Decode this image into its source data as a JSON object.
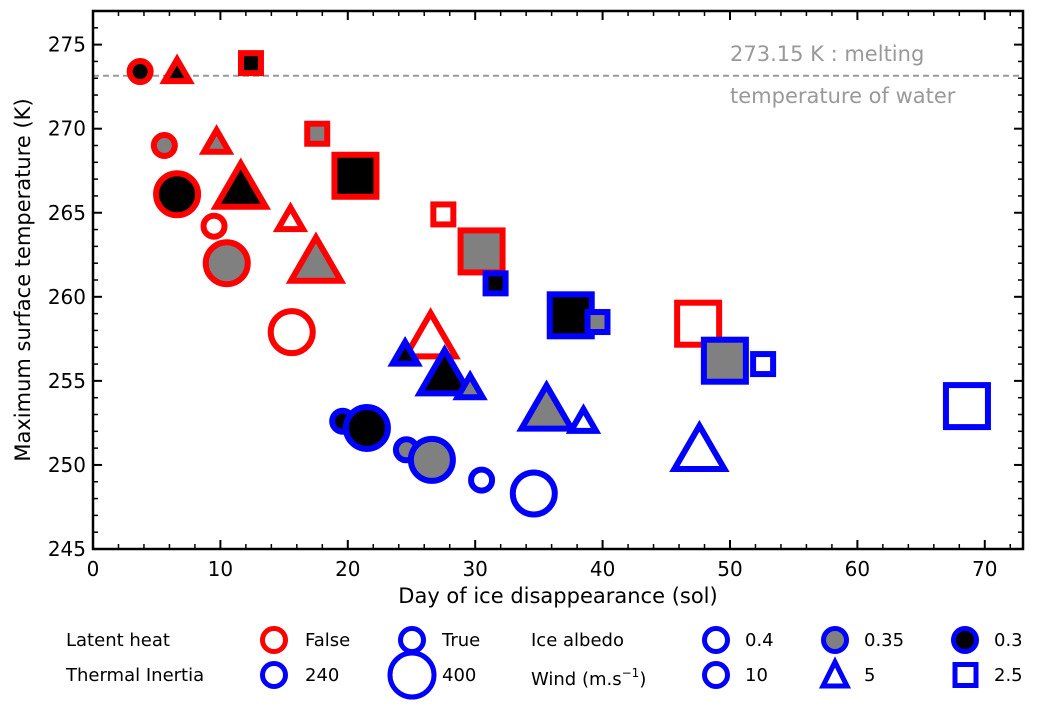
{
  "chart_data": {
    "type": "scatter",
    "title": "",
    "xlabel": "Day of ice disappearance (sol)",
    "ylabel": "Maximum surface temperature (K)",
    "xlim": [
      0,
      73
    ],
    "ylim": [
      245,
      277
    ],
    "xticks": [
      0,
      10,
      20,
      30,
      40,
      50,
      60,
      70
    ],
    "yticks": [
      245,
      250,
      255,
      260,
      265,
      270,
      275
    ],
    "grid": false,
    "reference_line": {
      "y": 273.15,
      "label_line1": "273.15 K : melting",
      "label_line2": "temperature of water"
    },
    "colors": {
      "latent_false": "#ff0000",
      "latent_true": "#0000ff",
      "albedo_0.4": "#ffffff",
      "albedo_0.35": "#808080",
      "albedo_0.3": "#000000",
      "reference": "#999999"
    },
    "points": [
      {
        "x": 3.7,
        "y": 273.4,
        "latent": "False",
        "ti": 240,
        "albedo": 0.3,
        "wind": 10
      },
      {
        "x": 6.6,
        "y": 273.4,
        "latent": "False",
        "ti": 240,
        "albedo": 0.3,
        "wind": 5
      },
      {
        "x": 12.4,
        "y": 273.9,
        "latent": "False",
        "ti": 240,
        "albedo": 0.3,
        "wind": 2.5
      },
      {
        "x": 5.6,
        "y": 269.0,
        "latent": "False",
        "ti": 240,
        "albedo": 0.35,
        "wind": 10
      },
      {
        "x": 9.7,
        "y": 269.2,
        "latent": "False",
        "ti": 240,
        "albedo": 0.35,
        "wind": 5
      },
      {
        "x": 17.6,
        "y": 269.7,
        "latent": "False",
        "ti": 240,
        "albedo": 0.35,
        "wind": 2.5
      },
      {
        "x": 6.6,
        "y": 266.1,
        "latent": "False",
        "ti": 400,
        "albedo": 0.3,
        "wind": 10
      },
      {
        "x": 11.6,
        "y": 266.5,
        "latent": "False",
        "ti": 400,
        "albedo": 0.3,
        "wind": 5
      },
      {
        "x": 20.6,
        "y": 267.2,
        "latent": "False",
        "ti": 400,
        "albedo": 0.3,
        "wind": 2.5
      },
      {
        "x": 9.5,
        "y": 264.2,
        "latent": "False",
        "ti": 240,
        "albedo": 0.4,
        "wind": 10
      },
      {
        "x": 15.5,
        "y": 264.6,
        "latent": "False",
        "ti": 240,
        "albedo": 0.4,
        "wind": 5
      },
      {
        "x": 27.5,
        "y": 264.9,
        "latent": "False",
        "ti": 240,
        "albedo": 0.4,
        "wind": 2.5
      },
      {
        "x": 10.5,
        "y": 262.0,
        "latent": "False",
        "ti": 400,
        "albedo": 0.35,
        "wind": 10
      },
      {
        "x": 17.5,
        "y": 262.1,
        "latent": "False",
        "ti": 400,
        "albedo": 0.35,
        "wind": 5
      },
      {
        "x": 30.5,
        "y": 262.7,
        "latent": "False",
        "ti": 400,
        "albedo": 0.35,
        "wind": 2.5
      },
      {
        "x": 15.6,
        "y": 257.9,
        "latent": "False",
        "ti": 400,
        "albedo": 0.4,
        "wind": 10
      },
      {
        "x": 26.5,
        "y": 257.6,
        "latent": "False",
        "ti": 400,
        "albedo": 0.4,
        "wind": 5
      },
      {
        "x": 47.5,
        "y": 258.4,
        "latent": "False",
        "ti": 400,
        "albedo": 0.4,
        "wind": 2.5
      },
      {
        "x": 31.6,
        "y": 260.8,
        "latent": "True",
        "ti": 240,
        "albedo": 0.3,
        "wind": 2.5
      },
      {
        "x": 37.5,
        "y": 258.9,
        "latent": "True",
        "ti": 400,
        "albedo": 0.3,
        "wind": 2.5
      },
      {
        "x": 39.6,
        "y": 258.5,
        "latent": "True",
        "ti": 240,
        "albedo": 0.35,
        "wind": 2.5
      },
      {
        "x": 49.6,
        "y": 256.2,
        "latent": "True",
        "ti": 400,
        "albedo": 0.35,
        "wind": 2.5
      },
      {
        "x": 52.6,
        "y": 256.0,
        "latent": "True",
        "ti": 240,
        "albedo": 0.4,
        "wind": 2.5
      },
      {
        "x": 68.6,
        "y": 253.5,
        "latent": "True",
        "ti": 400,
        "albedo": 0.4,
        "wind": 2.5
      },
      {
        "x": 24.5,
        "y": 256.6,
        "latent": "True",
        "ti": 240,
        "albedo": 0.3,
        "wind": 5
      },
      {
        "x": 27.6,
        "y": 255.4,
        "latent": "True",
        "ti": 400,
        "albedo": 0.3,
        "wind": 5
      },
      {
        "x": 29.6,
        "y": 254.6,
        "latent": "True",
        "ti": 240,
        "albedo": 0.35,
        "wind": 5
      },
      {
        "x": 35.6,
        "y": 253.3,
        "latent": "True",
        "ti": 400,
        "albedo": 0.35,
        "wind": 5
      },
      {
        "x": 38.5,
        "y": 252.6,
        "latent": "True",
        "ti": 240,
        "albedo": 0.4,
        "wind": 5
      },
      {
        "x": 47.6,
        "y": 250.9,
        "latent": "True",
        "ti": 400,
        "albedo": 0.4,
        "wind": 5
      },
      {
        "x": 19.6,
        "y": 252.6,
        "latent": "True",
        "ti": 240,
        "albedo": 0.3,
        "wind": 10
      },
      {
        "x": 21.5,
        "y": 252.2,
        "latent": "True",
        "ti": 400,
        "albedo": 0.3,
        "wind": 10
      },
      {
        "x": 24.6,
        "y": 250.9,
        "latent": "True",
        "ti": 240,
        "albedo": 0.35,
        "wind": 10
      },
      {
        "x": 26.6,
        "y": 250.3,
        "latent": "True",
        "ti": 400,
        "albedo": 0.35,
        "wind": 10
      },
      {
        "x": 30.5,
        "y": 249.1,
        "latent": "True",
        "ti": 240,
        "albedo": 0.4,
        "wind": 10
      },
      {
        "x": 34.6,
        "y": 248.3,
        "latent": "True",
        "ti": 400,
        "albedo": 0.4,
        "wind": 10
      }
    ]
  },
  "legend": {
    "latent_heat_label": "Latent heat",
    "latent_false_label": "False",
    "latent_true_label": "True",
    "thermal_inertia_label": "Thermal Inertia",
    "ti_240_label": "240",
    "ti_400_label": "400",
    "ice_albedo_label": "Ice albedo",
    "albedo_04_label": "0.4",
    "albedo_035_label": "0.35",
    "albedo_03_label": "0.3",
    "wind_label_prefix": "Wind (m.s",
    "wind_label_exp": "−1",
    "wind_label_suffix": ")",
    "wind_10_label": "10",
    "wind_5_label": "5",
    "wind_25_label": "2.5"
  }
}
